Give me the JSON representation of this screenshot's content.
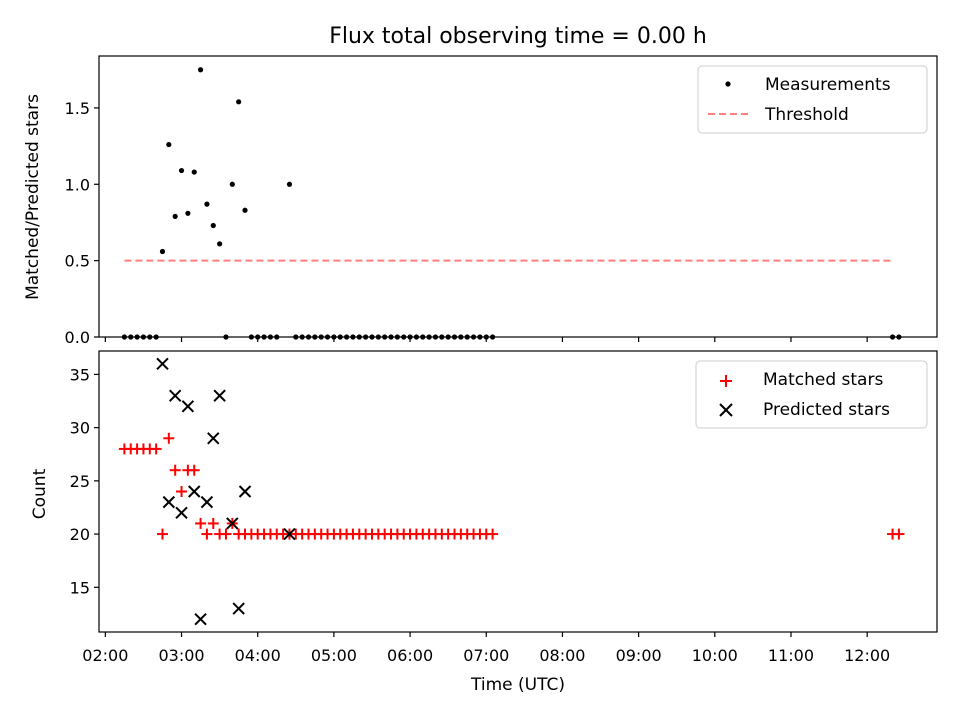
{
  "figure": {
    "title": "Flux total observing time = 0.00 h"
  },
  "chart_data": [
    {
      "type": "scatter",
      "panel": "top",
      "ylabel": "Matched/Predicted stars",
      "xlabel": "",
      "ylim": [
        0,
        1.84
      ],
      "yticks": [
        0.0,
        0.5,
        1.0,
        1.5
      ],
      "ytick_labels": [
        "0.0",
        "0.5",
        "1.0",
        "1.5"
      ],
      "legend_position": "top-right",
      "series": [
        {
          "name": "Measurements",
          "kind": "dot",
          "color": "#000000",
          "points": [
            [
              "02:15",
              0
            ],
            [
              "02:20",
              0
            ],
            [
              "02:25",
              0
            ],
            [
              "02:30",
              0
            ],
            [
              "02:35",
              0
            ],
            [
              "02:40",
              0
            ],
            [
              "02:45",
              0.56
            ],
            [
              "02:50",
              1.26
            ],
            [
              "02:55",
              0.79
            ],
            [
              "03:00",
              1.09
            ],
            [
              "03:05",
              0.81
            ],
            [
              "03:10",
              1.08
            ],
            [
              "03:15",
              1.75
            ],
            [
              "03:20",
              0.87
            ],
            [
              "03:25",
              0.73
            ],
            [
              "03:30",
              0.61
            ],
            [
              "03:35",
              0
            ],
            [
              "03:40",
              1.0
            ],
            [
              "03:45",
              1.54
            ],
            [
              "03:50",
              0.83
            ],
            [
              "03:55",
              0
            ],
            [
              "04:00",
              0
            ],
            [
              "04:05",
              0
            ],
            [
              "04:10",
              0
            ],
            [
              "04:15",
              0
            ],
            [
              "04:25",
              1.0
            ],
            [
              "04:30",
              0
            ],
            [
              "04:35",
              0
            ],
            [
              "04:40",
              0
            ],
            [
              "04:45",
              0
            ],
            [
              "04:50",
              0
            ],
            [
              "04:55",
              0
            ],
            [
              "05:00",
              0
            ],
            [
              "05:05",
              0
            ],
            [
              "05:10",
              0
            ],
            [
              "05:15",
              0
            ],
            [
              "05:20",
              0
            ],
            [
              "05:25",
              0
            ],
            [
              "05:30",
              0
            ],
            [
              "05:35",
              0
            ],
            [
              "05:40",
              0
            ],
            [
              "05:45",
              0
            ],
            [
              "05:50",
              0
            ],
            [
              "05:55",
              0
            ],
            [
              "06:00",
              0
            ],
            [
              "06:05",
              0
            ],
            [
              "06:10",
              0
            ],
            [
              "06:15",
              0
            ],
            [
              "06:20",
              0
            ],
            [
              "06:25",
              0
            ],
            [
              "06:30",
              0
            ],
            [
              "06:35",
              0
            ],
            [
              "06:40",
              0
            ],
            [
              "06:45",
              0
            ],
            [
              "06:50",
              0
            ],
            [
              "06:55",
              0
            ],
            [
              "07:00",
              0
            ],
            [
              "07:05",
              0
            ],
            [
              "12:20",
              0
            ],
            [
              "12:25",
              0
            ]
          ]
        },
        {
          "name": "Threshold",
          "kind": "dashed-line",
          "color": "#ff7f7f",
          "points": [
            [
              "02:15",
              0.5
            ],
            [
              "12:20",
              0.5
            ]
          ]
        }
      ]
    },
    {
      "type": "scatter",
      "panel": "bottom",
      "ylabel": "Count",
      "xlabel": "Time (UTC)",
      "ylim": [
        10.8,
        37.2
      ],
      "yticks": [
        15,
        20,
        25,
        30,
        35
      ],
      "ytick_labels": [
        "15",
        "20",
        "25",
        "30",
        "35"
      ],
      "legend_position": "top-right",
      "series": [
        {
          "name": "Matched stars",
          "kind": "plus",
          "color": "#ff0000",
          "points": [
            [
              "02:15",
              28
            ],
            [
              "02:20",
              28
            ],
            [
              "02:25",
              28
            ],
            [
              "02:30",
              28
            ],
            [
              "02:35",
              28
            ],
            [
              "02:40",
              28
            ],
            [
              "02:45",
              20
            ],
            [
              "02:50",
              29
            ],
            [
              "02:55",
              26
            ],
            [
              "03:00",
              24
            ],
            [
              "03:05",
              26
            ],
            [
              "03:10",
              26
            ],
            [
              "03:15",
              21
            ],
            [
              "03:20",
              20
            ],
            [
              "03:25",
              21
            ],
            [
              "03:30",
              20
            ],
            [
              "03:35",
              20
            ],
            [
              "03:40",
              21
            ],
            [
              "03:45",
              20
            ],
            [
              "03:50",
              20
            ],
            [
              "03:55",
              20
            ],
            [
              "04:00",
              20
            ],
            [
              "04:05",
              20
            ],
            [
              "04:10",
              20
            ],
            [
              "04:15",
              20
            ],
            [
              "04:20",
              20
            ],
            [
              "04:25",
              20
            ],
            [
              "04:30",
              20
            ],
            [
              "04:35",
              20
            ],
            [
              "04:40",
              20
            ],
            [
              "04:45",
              20
            ],
            [
              "04:50",
              20
            ],
            [
              "04:55",
              20
            ],
            [
              "05:00",
              20
            ],
            [
              "05:05",
              20
            ],
            [
              "05:10",
              20
            ],
            [
              "05:15",
              20
            ],
            [
              "05:20",
              20
            ],
            [
              "05:25",
              20
            ],
            [
              "05:30",
              20
            ],
            [
              "05:35",
              20
            ],
            [
              "05:40",
              20
            ],
            [
              "05:45",
              20
            ],
            [
              "05:50",
              20
            ],
            [
              "05:55",
              20
            ],
            [
              "06:00",
              20
            ],
            [
              "06:05",
              20
            ],
            [
              "06:10",
              20
            ],
            [
              "06:15",
              20
            ],
            [
              "06:20",
              20
            ],
            [
              "06:25",
              20
            ],
            [
              "06:30",
              20
            ],
            [
              "06:35",
              20
            ],
            [
              "06:40",
              20
            ],
            [
              "06:45",
              20
            ],
            [
              "06:50",
              20
            ],
            [
              "06:55",
              20
            ],
            [
              "07:00",
              20
            ],
            [
              "07:05",
              20
            ],
            [
              "12:20",
              20
            ],
            [
              "12:25",
              20
            ]
          ]
        },
        {
          "name": "Predicted stars",
          "kind": "x",
          "color": "#000000",
          "points": [
            [
              "02:45",
              36
            ],
            [
              "02:50",
              23
            ],
            [
              "02:55",
              33
            ],
            [
              "03:00",
              22
            ],
            [
              "03:05",
              32
            ],
            [
              "03:10",
              24
            ],
            [
              "03:15",
              12
            ],
            [
              "03:20",
              23
            ],
            [
              "03:25",
              29
            ],
            [
              "03:30",
              33
            ],
            [
              "03:40",
              21
            ],
            [
              "03:45",
              13
            ],
            [
              "03:50",
              24
            ],
            [
              "04:25",
              20
            ]
          ]
        }
      ]
    }
  ],
  "x_axis": {
    "range": [
      "01:55",
      "12:55"
    ],
    "ticks": [
      "02:00",
      "03:00",
      "04:00",
      "05:00",
      "06:00",
      "07:00",
      "08:00",
      "09:00",
      "10:00",
      "11:00",
      "12:00"
    ],
    "tick_labels": [
      "02:00",
      "03:00",
      "04:00",
      "05:00",
      "06:00",
      "07:00",
      "08:00",
      "09:00",
      "10:00",
      "11:00",
      "12:00"
    ]
  }
}
